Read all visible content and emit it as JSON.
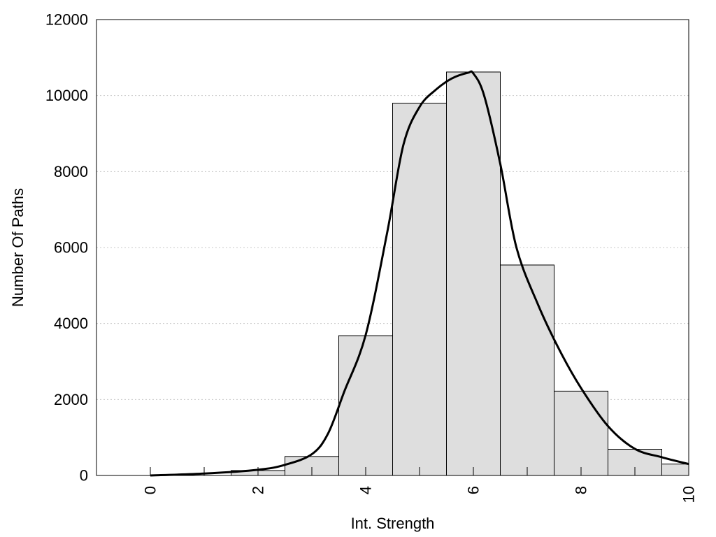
{
  "chart_data": {
    "type": "bar",
    "title": "",
    "xlabel": "Int. Strength",
    "ylabel": "Number Of Paths",
    "xlim": [
      -1,
      10
    ],
    "ylim": [
      0,
      12000
    ],
    "x_ticks": [
      0,
      2,
      4,
      6,
      8,
      10
    ],
    "y_ticks": [
      0,
      2000,
      4000,
      6000,
      8000,
      10000,
      12000
    ],
    "grid": true,
    "legend": "none",
    "bar_width": 1,
    "bars": [
      {
        "x": 0,
        "value": 0
      },
      {
        "x": 1,
        "value": 0
      },
      {
        "x": 2,
        "value": 130
      },
      {
        "x": 3,
        "value": 500
      },
      {
        "x": 4,
        "value": 3680
      },
      {
        "x": 5,
        "value": 9800
      },
      {
        "x": 6,
        "value": 10620
      },
      {
        "x": 7,
        "value": 5540
      },
      {
        "x": 8,
        "value": 2220
      },
      {
        "x": 9,
        "value": 690
      },
      {
        "x": 10,
        "value": 300
      }
    ],
    "density_curve": {
      "x": [
        0,
        1,
        2,
        2.5,
        3,
        3.3,
        3.6,
        4,
        4.4,
        4.7,
        5,
        5.3,
        5.6,
        5.9,
        6.0,
        6.2,
        6.5,
        6.8,
        7.2,
        7.6,
        8,
        8.5,
        9,
        9.5,
        10
      ],
      "y": [
        0,
        50,
        150,
        280,
        560,
        1100,
        2200,
        3700,
        6400,
        8700,
        9700,
        10150,
        10450,
        10600,
        10580,
        10000,
        8200,
        6000,
        4500,
        3300,
        2300,
        1300,
        700,
        480,
        300
      ]
    },
    "colors": {
      "bar_fill": "#dedede",
      "bar_edge": "#000000",
      "curve": "#000000"
    }
  }
}
